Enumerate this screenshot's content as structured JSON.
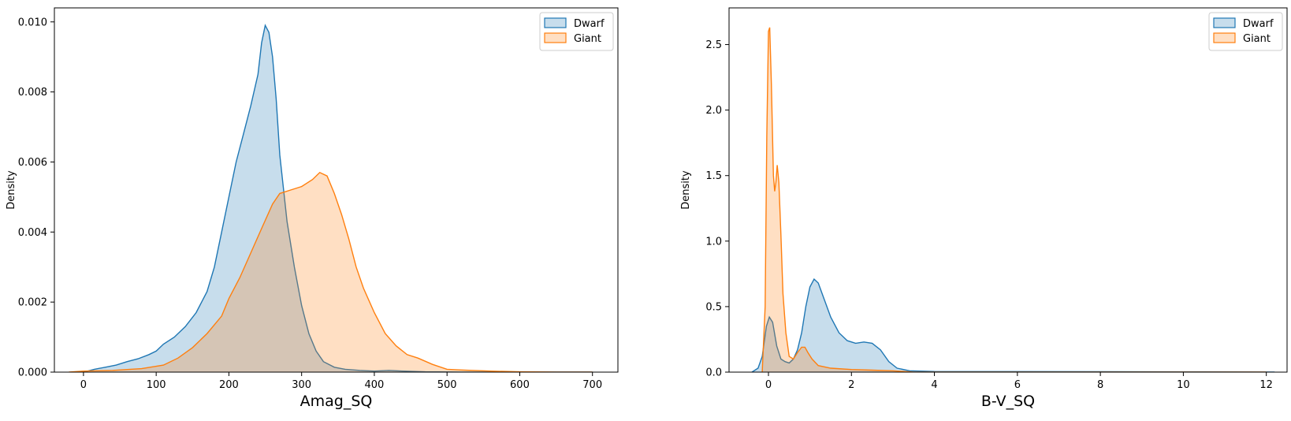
{
  "chart_data": [
    {
      "type": "area",
      "xlabel": "Amag_SQ",
      "ylabel": "Density",
      "xlim": [
        -40,
        735
      ],
      "ylim": [
        0,
        0.0104
      ],
      "xticks": [
        0,
        100,
        200,
        300,
        400,
        500,
        600,
        700
      ],
      "yticks": [
        0.0,
        0.002,
        0.004,
        0.006,
        0.008,
        0.01
      ],
      "ytick_labels": [
        "0.000",
        "0.002",
        "0.004",
        "0.006",
        "0.008",
        "0.010"
      ],
      "xtick_labels": [
        "0",
        "100",
        "200",
        "300",
        "400",
        "500",
        "600",
        "700"
      ],
      "grid": false,
      "legend": "upper right",
      "series": [
        {
          "name": "Dwarf",
          "color": "#1f77b4",
          "fill": "#1f77b4",
          "points": [
            [
              0,
              0.0
            ],
            [
              15,
              8e-05
            ],
            [
              30,
              0.00014
            ],
            [
              45,
              0.0002
            ],
            [
              60,
              0.0003
            ],
            [
              75,
              0.00038
            ],
            [
              90,
              0.0005
            ],
            [
              100,
              0.0006
            ],
            [
              110,
              0.0008
            ],
            [
              125,
              0.001
            ],
            [
              140,
              0.0013
            ],
            [
              155,
              0.0017
            ],
            [
              170,
              0.0023
            ],
            [
              180,
              0.003
            ],
            [
              190,
              0.004
            ],
            [
              200,
              0.005
            ],
            [
              210,
              0.006
            ],
            [
              220,
              0.0068
            ],
            [
              230,
              0.0076
            ],
            [
              240,
              0.0085
            ],
            [
              245,
              0.0094
            ],
            [
              250,
              0.0099
            ],
            [
              255,
              0.0097
            ],
            [
              260,
              0.009
            ],
            [
              265,
              0.0078
            ],
            [
              270,
              0.0062
            ],
            [
              280,
              0.0043
            ],
            [
              290,
              0.003
            ],
            [
              300,
              0.0019
            ],
            [
              310,
              0.0011
            ],
            [
              320,
              0.0006
            ],
            [
              330,
              0.0003
            ],
            [
              345,
              0.00014
            ],
            [
              360,
              8e-05
            ],
            [
              380,
              5e-05
            ],
            [
              400,
              3e-05
            ],
            [
              420,
              5e-05
            ],
            [
              440,
              3e-05
            ],
            [
              470,
              1e-05
            ],
            [
              520,
              0.0
            ],
            [
              700,
              0.0
            ]
          ]
        },
        {
          "name": "Giant",
          "color": "#ff7f0e",
          "fill": "#ff7f0e",
          "points": [
            [
              -20,
              0.0
            ],
            [
              0,
              3e-05
            ],
            [
              40,
              5e-05
            ],
            [
              80,
              0.0001
            ],
            [
              110,
              0.0002
            ],
            [
              130,
              0.0004
            ],
            [
              150,
              0.0007
            ],
            [
              170,
              0.0011
            ],
            [
              190,
              0.0016
            ],
            [
              200,
              0.0021
            ],
            [
              215,
              0.0027
            ],
            [
              230,
              0.0034
            ],
            [
              245,
              0.0041
            ],
            [
              260,
              0.0048
            ],
            [
              270,
              0.0051
            ],
            [
              285,
              0.0052
            ],
            [
              300,
              0.0053
            ],
            [
              315,
              0.0055
            ],
            [
              325,
              0.0057
            ],
            [
              335,
              0.0056
            ],
            [
              345,
              0.0051
            ],
            [
              355,
              0.0045
            ],
            [
              365,
              0.0038
            ],
            [
              375,
              0.003
            ],
            [
              385,
              0.0024
            ],
            [
              400,
              0.0017
            ],
            [
              415,
              0.0011
            ],
            [
              430,
              0.00075
            ],
            [
              445,
              0.0005
            ],
            [
              460,
              0.0004
            ],
            [
              480,
              0.00022
            ],
            [
              500,
              8e-05
            ],
            [
              520,
              6e-05
            ],
            [
              560,
              3e-05
            ],
            [
              600,
              1e-05
            ],
            [
              650,
              0.0
            ],
            [
              700,
              0.0
            ]
          ]
        }
      ]
    },
    {
      "type": "area",
      "xlabel": "B-V_SQ",
      "ylabel": "Density",
      "xlim": [
        -0.95,
        12.5
      ],
      "ylim": [
        0,
        2.78
      ],
      "xticks": [
        0,
        2,
        4,
        6,
        8,
        10,
        12
      ],
      "yticks": [
        0.0,
        0.5,
        1.0,
        1.5,
        2.0,
        2.5
      ],
      "ytick_labels": [
        "0.0",
        "0.5",
        "1.0",
        "1.5",
        "2.0",
        "2.5"
      ],
      "xtick_labels": [
        "0",
        "2",
        "4",
        "6",
        "8",
        "10",
        "12"
      ],
      "grid": false,
      "legend": "upper right",
      "series": [
        {
          "name": "Dwarf",
          "color": "#1f77b4",
          "fill": "#1f77b4",
          "points": [
            [
              -0.4,
              0.0
            ],
            [
              -0.25,
              0.03
            ],
            [
              -0.15,
              0.12
            ],
            [
              -0.05,
              0.35
            ],
            [
              0.02,
              0.42
            ],
            [
              0.1,
              0.38
            ],
            [
              0.2,
              0.2
            ],
            [
              0.3,
              0.1
            ],
            [
              0.4,
              0.08
            ],
            [
              0.5,
              0.07
            ],
            [
              0.6,
              0.1
            ],
            [
              0.7,
              0.17
            ],
            [
              0.8,
              0.3
            ],
            [
              0.9,
              0.5
            ],
            [
              1.0,
              0.65
            ],
            [
              1.1,
              0.71
            ],
            [
              1.2,
              0.68
            ],
            [
              1.35,
              0.55
            ],
            [
              1.5,
              0.42
            ],
            [
              1.7,
              0.3
            ],
            [
              1.9,
              0.24
            ],
            [
              2.1,
              0.22
            ],
            [
              2.3,
              0.23
            ],
            [
              2.5,
              0.22
            ],
            [
              2.7,
              0.17
            ],
            [
              2.9,
              0.08
            ],
            [
              3.1,
              0.03
            ],
            [
              3.4,
              0.01
            ],
            [
              4.0,
              0.005
            ],
            [
              6.0,
              0.004
            ],
            [
              8.0,
              0.003
            ],
            [
              10.0,
              0.002
            ],
            [
              12.2,
              0.0
            ]
          ]
        },
        {
          "name": "Giant",
          "color": "#ff7f0e",
          "fill": "#ff7f0e",
          "points": [
            [
              -0.15,
              0.0
            ],
            [
              -0.08,
              0.5
            ],
            [
              -0.04,
              1.8
            ],
            [
              0.0,
              2.6
            ],
            [
              0.03,
              2.63
            ],
            [
              0.07,
              2.2
            ],
            [
              0.12,
              1.5
            ],
            [
              0.15,
              1.38
            ],
            [
              0.18,
              1.45
            ],
            [
              0.21,
              1.58
            ],
            [
              0.25,
              1.45
            ],
            [
              0.3,
              1.05
            ],
            [
              0.35,
              0.6
            ],
            [
              0.42,
              0.3
            ],
            [
              0.5,
              0.12
            ],
            [
              0.6,
              0.1
            ],
            [
              0.7,
              0.15
            ],
            [
              0.8,
              0.19
            ],
            [
              0.88,
              0.19
            ],
            [
              0.95,
              0.15
            ],
            [
              1.05,
              0.1
            ],
            [
              1.2,
              0.05
            ],
            [
              1.5,
              0.03
            ],
            [
              2.0,
              0.02
            ],
            [
              2.5,
              0.015
            ],
            [
              3.0,
              0.01
            ],
            [
              3.5,
              0.0
            ],
            [
              12.0,
              0.0
            ]
          ]
        }
      ]
    }
  ]
}
